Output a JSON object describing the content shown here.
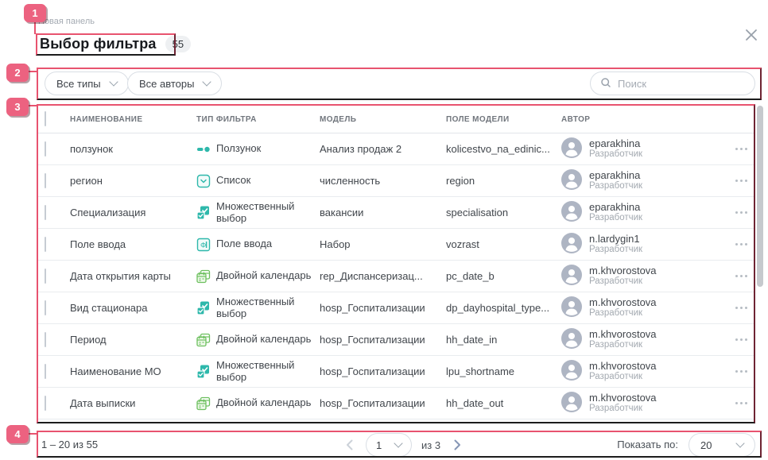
{
  "dialog": {
    "breadcrumb": "Новая панель",
    "title": "Выбор фильтра",
    "count_badge": "55"
  },
  "filter_bar": {
    "type_filter": "Все типы",
    "author_filter": "Все авторы",
    "search_placeholder": "Поиск"
  },
  "table": {
    "columns": [
      "НАИМЕНОВАНИЕ",
      "ТИП ФИЛЬТРА",
      "МОДЕЛЬ",
      "ПОЛЕ МОДЕЛИ",
      "АВТОР"
    ],
    "rows": [
      {
        "name": "ползунок",
        "type": "Ползунок",
        "type_icon": "slider-icon",
        "model": "Анализ продаж 2",
        "field": "kolicestvo_na_edinic...",
        "author": "eparakhina",
        "role": "Разработчик"
      },
      {
        "name": "регион",
        "type": "Список",
        "type_icon": "list-icon",
        "model": "численность",
        "field": "region",
        "author": "eparakhina",
        "role": "Разработчик"
      },
      {
        "name": "Специализация",
        "type": "Множественный выбор",
        "type_icon": "multiselect-icon",
        "model": "вакансии",
        "field": "specialisation",
        "author": "eparakhina",
        "role": "Разработчик"
      },
      {
        "name": "Поле ввода",
        "type": "Поле ввода",
        "type_icon": "input-field-icon",
        "model": "Набор",
        "field": "vozrast",
        "author": "n.lardygin1",
        "role": "Разработчик"
      },
      {
        "name": "Дата открытия карты",
        "type": "Двойной календарь",
        "type_icon": "double-calendar-icon",
        "model": "rep_Диспансеризац...",
        "field": "pc_date_b",
        "author": "m.khvorostova",
        "role": "Разработчик"
      },
      {
        "name": "Вид стационара",
        "type": "Множественный выбор",
        "type_icon": "multiselect-icon",
        "model": "hosp_Госпитализации",
        "field": "dp_dayhospital_type...",
        "author": "m.khvorostova",
        "role": "Разработчик"
      },
      {
        "name": "Период",
        "type": "Двойной календарь",
        "type_icon": "double-calendar-icon",
        "model": "hosp_Госпитализации",
        "field": "hh_date_in",
        "author": "m.khvorostova",
        "role": "Разработчик"
      },
      {
        "name": "Наименование МО",
        "type": "Множественный выбор",
        "type_icon": "multiselect-icon",
        "model": "hosp_Госпитализации",
        "field": "lpu_shortname",
        "author": "m.khvorostova",
        "role": "Разработчик"
      },
      {
        "name": "Дата выписки",
        "type": "Двойной календарь",
        "type_icon": "double-calendar-icon",
        "model": "hosp_Госпитализации",
        "field": "hh_date_out",
        "author": "m.khvorostova",
        "role": "Разработчик"
      }
    ]
  },
  "footer": {
    "range_label": "1 – 20 из 55",
    "current_page": "1",
    "total_pages_label": "из 3",
    "page_size_label": "Показать по:",
    "page_size": "20"
  },
  "annotations": {
    "badge_1": "1",
    "badge_2": "2",
    "badge_3": "3",
    "badge_4": "4",
    "accent_color": "#ec6280"
  },
  "colors": {
    "teal_icon": "#2eb8ab",
    "green_icon": "#6cbf5e",
    "annotation_outline": "#e8536f"
  }
}
